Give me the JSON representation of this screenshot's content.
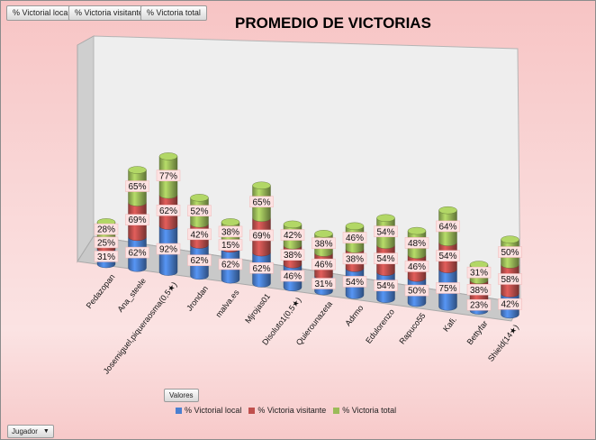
{
  "field_buttons": [
    "% Victorial local",
    "% Victoria visitante",
    "% Victoria total"
  ],
  "valores_label": "Valores",
  "jugador_label": "Jugador",
  "jugador_arrow": "▼",
  "colors": {
    "local": "#4a7fd0",
    "visitante": "#c0504d",
    "total": "#9bbb59"
  },
  "chart_data": {
    "type": "bar",
    "stacked": true,
    "three_d": true,
    "title": "PROMEDIO DE VICTORIAS",
    "categories": [
      "Pedazopan",
      "Ana_steele",
      "Josemiguel,piqueraosma(0,5★)",
      "Jrondan",
      "malva.es",
      "Mjrojas01",
      "Disoluto1(0,5★)",
      "Quierounazeta",
      "Adrmo",
      "Edulorenzo",
      "Rapuco55",
      "Kafi.",
      "Bettyfar",
      "Shield(14★)"
    ],
    "series": [
      {
        "name": "% Victorial local",
        "values": [
          31,
          62,
          92,
          62,
          62,
          62,
          46,
          31,
          54,
          54,
          50,
          75,
          23,
          42
        ]
      },
      {
        "name": "% Victoria visitante",
        "values": [
          25,
          69,
          62,
          42,
          15,
          69,
          38,
          46,
          38,
          54,
          46,
          54,
          38,
          58
        ]
      },
      {
        "name": "% Victoria total",
        "values": [
          28,
          65,
          77,
          52,
          38,
          65,
          42,
          38,
          46,
          54,
          48,
          64,
          31,
          50
        ]
      }
    ],
    "data_labels": true,
    "value_format": "percent",
    "legend_position": "bottom"
  }
}
